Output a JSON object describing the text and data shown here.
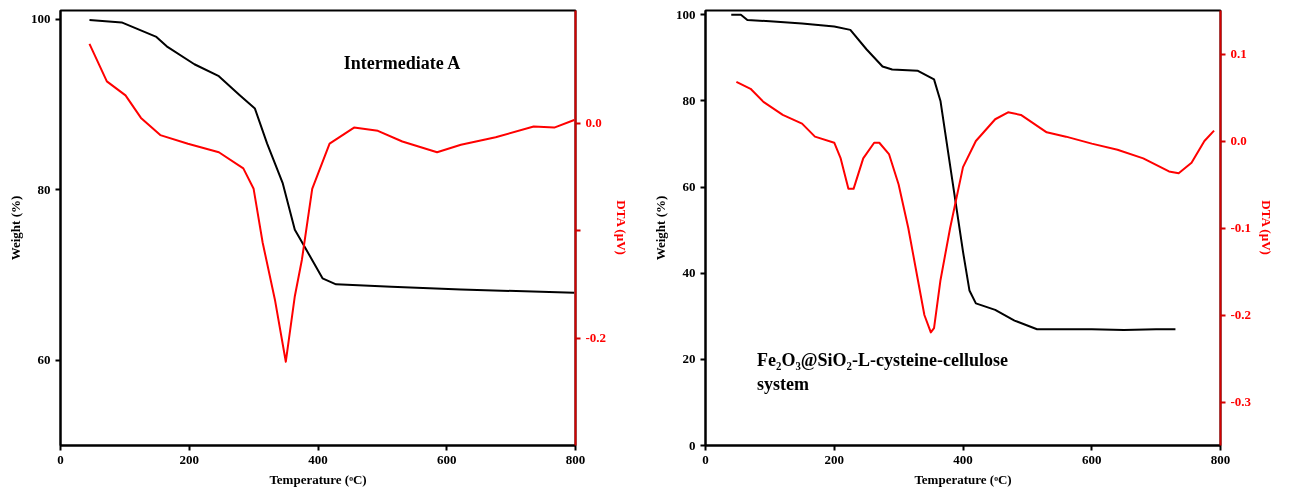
{
  "chart_data": [
    {
      "type": "line",
      "xlabel": "Temperature (ᵒC)",
      "ylabel": "Weight (%)",
      "y2label": "DTA (µV)",
      "annotations": [
        "Intermediate A"
      ],
      "xlim": [
        0,
        800
      ],
      "xticks": [
        0,
        200,
        400,
        600,
        800
      ],
      "ylim": [
        50,
        101
      ],
      "yticks": [
        60,
        80,
        100
      ],
      "y2lim": [
        -0.3,
        0.105
      ],
      "y2ticks": [
        {
          "value": 0.0,
          "label": "0.0"
        },
        {
          "value": -0.1,
          "label": null
        },
        {
          "value": -0.2,
          "label": "-0.2"
        }
      ],
      "grid": false,
      "series": [
        {
          "color": "#000000",
          "x": [
            45,
            95,
            149,
            165,
            208,
            246,
            278,
            302,
            321,
            345,
            364,
            377,
            407,
            428,
            514,
            622,
            798
          ],
          "values": [
            99.9,
            99.6,
            97.9,
            96.8,
            94.7,
            93.3,
            91.1,
            89.5,
            85.4,
            80.8,
            75.3,
            73.6,
            69.6,
            68.9,
            68.6,
            68.3,
            67.9
          ]
        },
        {
          "color": "#ff0000",
          "axis": "y2",
          "x": [
            45,
            72,
            101,
            125,
            155,
            198,
            246,
            284,
            300,
            314,
            333,
            350,
            364,
            375,
            391,
            418,
            456,
            493,
            531,
            585,
            622,
            676,
            735,
            767,
            798
          ],
          "values": [
            0.074,
            0.039,
            0.026,
            0.005,
            -0.011,
            -0.019,
            -0.027,
            -0.042,
            -0.061,
            -0.111,
            -0.164,
            -0.222,
            -0.161,
            -0.127,
            -0.061,
            -0.019,
            -0.004,
            -0.007,
            -0.017,
            -0.027,
            -0.02,
            -0.013,
            -0.003,
            -0.004,
            0.003
          ]
        }
      ]
    },
    {
      "type": "line",
      "xlabel": "Temperature (ᵒC)",
      "ylabel": "Weight (%)",
      "y2label": "DTA (µV)",
      "annotations": [
        "Fe₂O₃@SiO₂-L-cysteine-cellulose\nsystem"
      ],
      "xlim": [
        0,
        800
      ],
      "xticks": [
        0,
        200,
        400,
        600,
        800
      ],
      "ylim": [
        0,
        101
      ],
      "yticks": [
        0,
        20,
        40,
        60,
        80,
        100
      ],
      "y2lim": [
        -0.35,
        0.15
      ],
      "y2ticks": [
        {
          "value": 0.1,
          "label": "0.1"
        },
        {
          "value": 0.0,
          "label": "0.0"
        },
        {
          "value": -0.1,
          "label": "-0.1"
        },
        {
          "value": -0.2,
          "label": "-0.2"
        },
        {
          "value": -0.3,
          "label": "-0.3"
        }
      ],
      "grid": false,
      "series": [
        {
          "color": "#000000",
          "x": [
            40,
            55,
            65,
            100,
            150,
            200,
            225,
            250,
            275,
            290,
            330,
            355,
            365,
            380,
            400,
            410,
            420,
            450,
            480,
            515,
            600,
            650,
            700,
            730
          ],
          "values": [
            100,
            100,
            98.8,
            98.5,
            98,
            97.3,
            96.5,
            92,
            88,
            87.3,
            87,
            85,
            80,
            65,
            45,
            36,
            33,
            31.5,
            29,
            27,
            27,
            26.8,
            27,
            27
          ]
        },
        {
          "color": "#ff0000",
          "axis": "y2",
          "x": [
            48,
            70,
            90,
            120,
            150,
            170,
            200,
            210,
            222,
            230,
            245,
            262,
            270,
            285,
            300,
            315,
            330,
            340,
            350,
            355,
            365,
            380,
            400,
            420,
            450,
            470,
            490,
            510,
            530,
            560,
            600,
            640,
            680,
            720,
            735,
            755,
            775,
            790
          ],
          "values": [
            0.068,
            0.06,
            0.045,
            0.03,
            0.02,
            0.005,
            -0.002,
            -0.02,
            -0.055,
            -0.055,
            -0.02,
            -0.002,
            -0.002,
            -0.015,
            -0.05,
            -0.1,
            -0.16,
            -0.2,
            -0.22,
            -0.215,
            -0.16,
            -0.1,
            -0.03,
            0.0,
            0.025,
            0.033,
            0.03,
            0.02,
            0.01,
            0.005,
            -0.003,
            -0.01,
            -0.02,
            -0.035,
            -0.037,
            -0.025,
            0.0,
            0.012
          ]
        }
      ]
    }
  ]
}
